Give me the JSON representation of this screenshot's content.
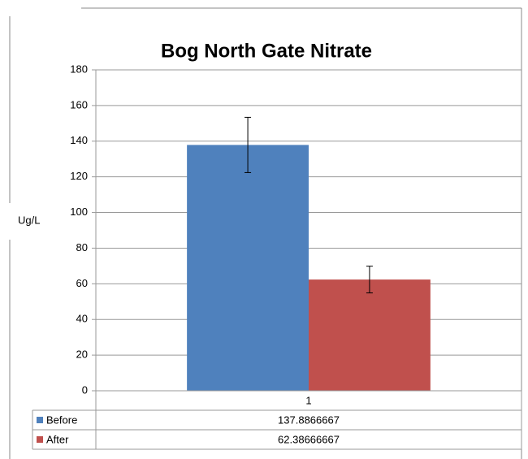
{
  "chart_data": {
    "type": "bar",
    "title": "Bog North Gate Nitrate",
    "y_label": "Ug/L",
    "categories": [
      "1"
    ],
    "series": [
      {
        "name": "Before",
        "color": "#4f81bd",
        "values": [
          137.8866667
        ],
        "errors": [
          15.5
        ]
      },
      {
        "name": "After",
        "color": "#c0504d",
        "values": [
          62.38666667
        ],
        "errors": [
          7.5
        ]
      }
    ],
    "ylim": [
      0,
      180
    ],
    "yticks": [
      0,
      20,
      40,
      60,
      80,
      100,
      120,
      140,
      160,
      180
    ],
    "grid": true,
    "data_table": true
  }
}
